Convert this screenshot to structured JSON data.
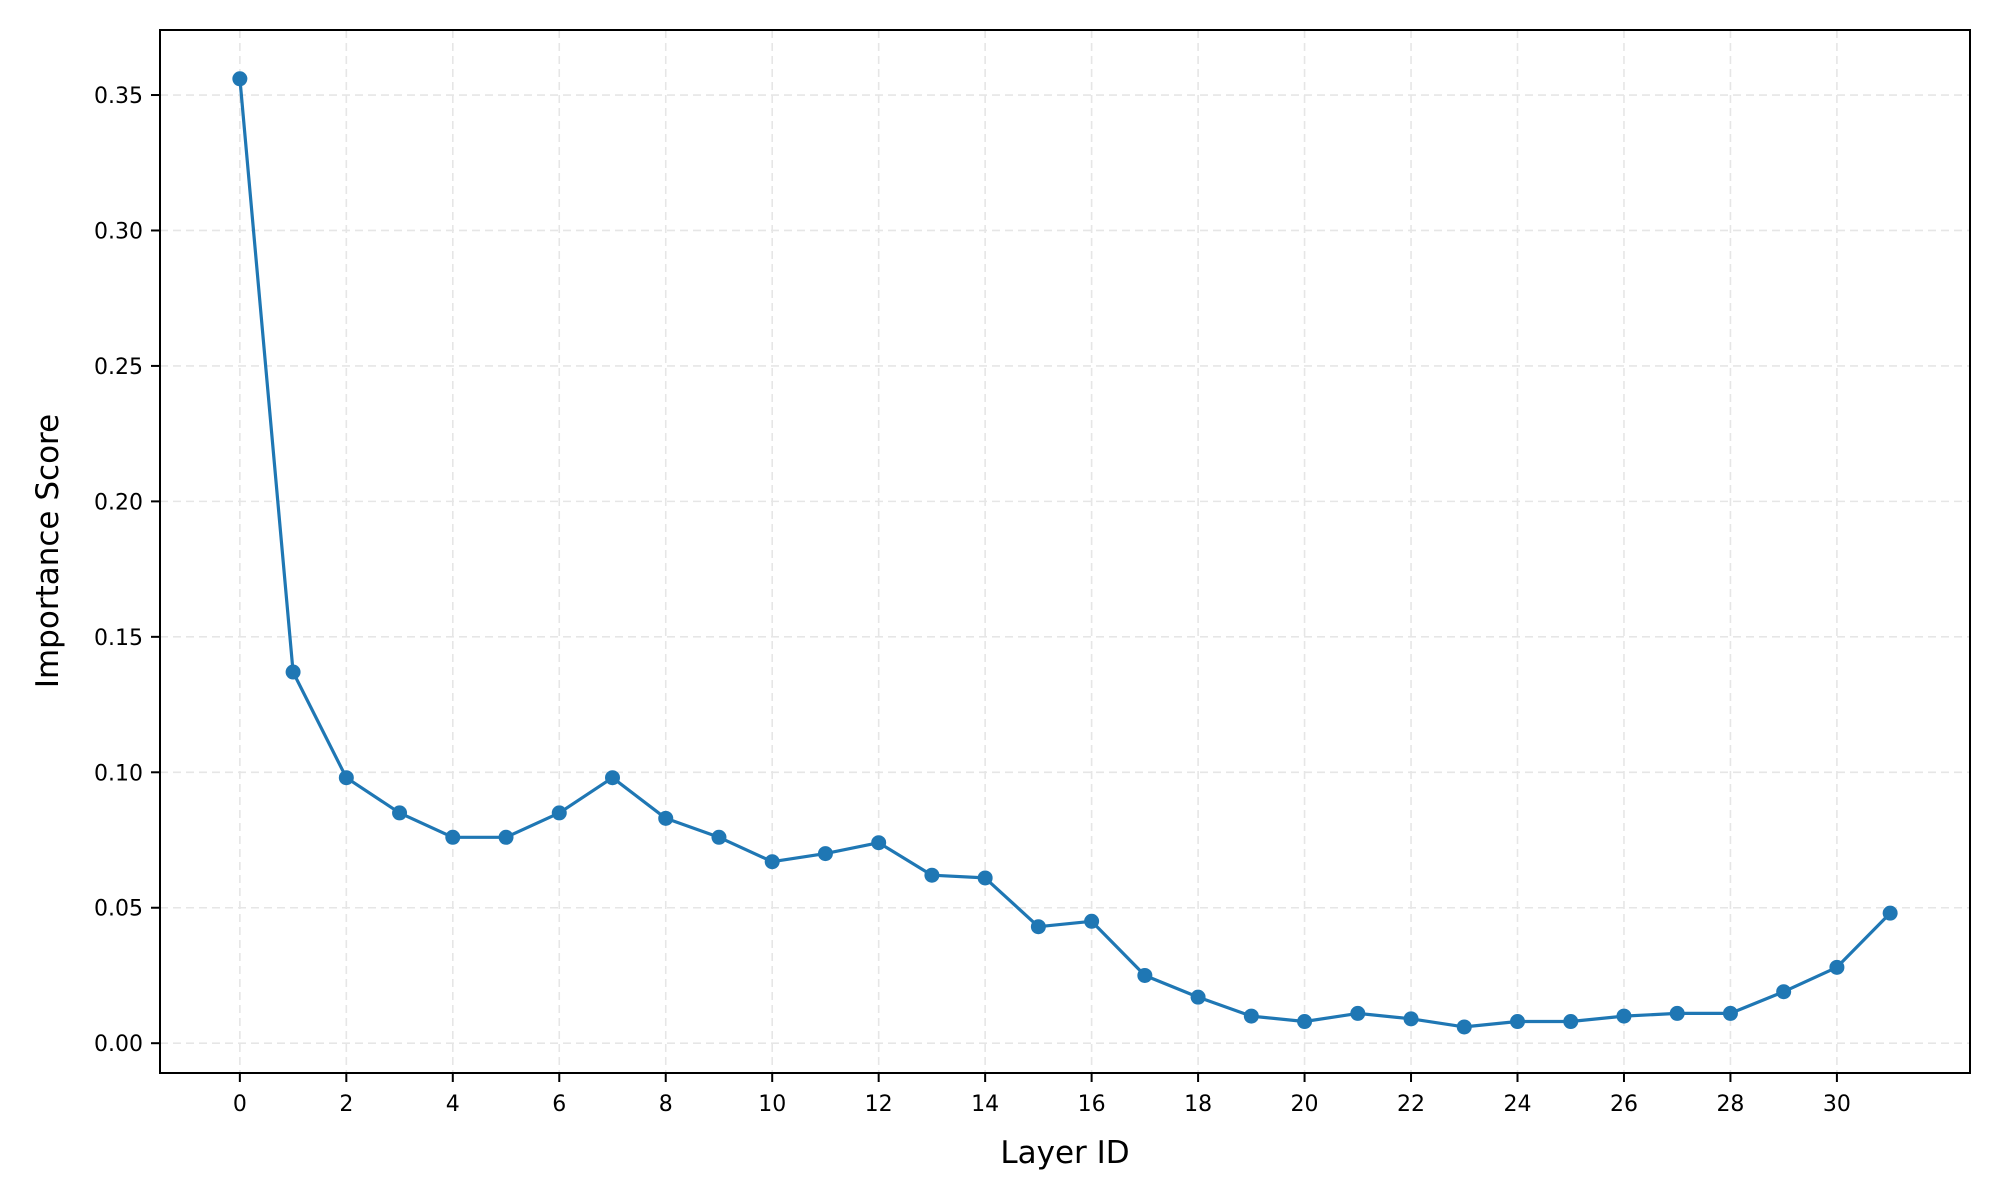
{
  "chart_data": {
    "type": "line",
    "title": "",
    "xlabel": "Layer ID",
    "ylabel": "Importance Score",
    "x": [
      0,
      1,
      2,
      3,
      4,
      5,
      6,
      7,
      8,
      9,
      10,
      11,
      12,
      13,
      14,
      15,
      16,
      17,
      18,
      19,
      20,
      21,
      22,
      23,
      24,
      25,
      26,
      27,
      28,
      29,
      30,
      31
    ],
    "series": [
      {
        "name": "Importance Score",
        "color": "#1f77b4",
        "marker": "circle",
        "values": [
          0.356,
          0.137,
          0.098,
          0.085,
          0.076,
          0.076,
          0.085,
          0.098,
          0.083,
          0.076,
          0.067,
          0.07,
          0.074,
          0.062,
          0.061,
          0.043,
          0.045,
          0.025,
          0.017,
          0.01,
          0.008,
          0.011,
          0.009,
          0.006,
          0.008,
          0.008,
          0.01,
          0.011,
          0.011,
          0.019,
          0.028,
          0.048
        ]
      }
    ],
    "xticks": [
      "0",
      "2",
      "4",
      "6",
      "8",
      "10",
      "12",
      "14",
      "16",
      "18",
      "20",
      "22",
      "24",
      "26",
      "28",
      "30"
    ],
    "yticks": [
      "0.00",
      "0.05",
      "0.10",
      "0.15",
      "0.20",
      "0.25",
      "0.30",
      "0.35"
    ],
    "xlim": [
      -1.5,
      32.5
    ],
    "ylim": [
      -0.011,
      0.374
    ],
    "grid": true,
    "legend": null
  }
}
